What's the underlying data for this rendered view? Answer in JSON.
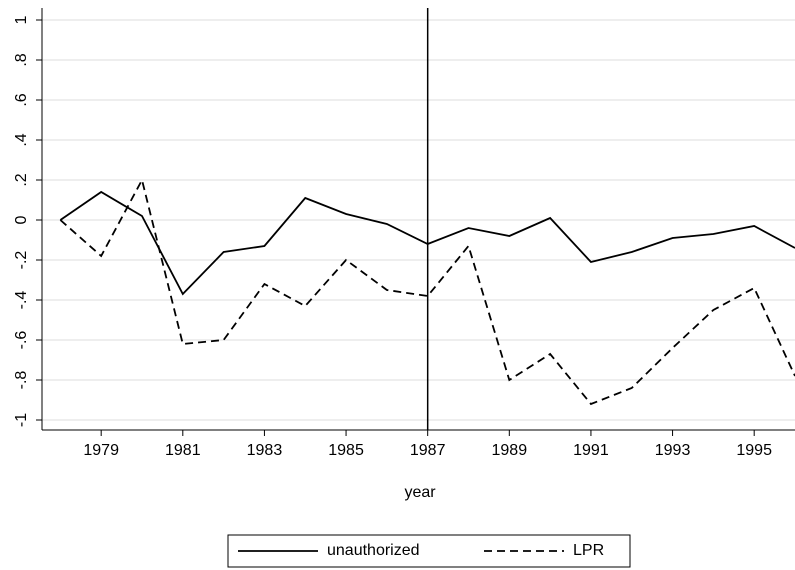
{
  "chart_data": {
    "type": "line",
    "x_label": "year",
    "x": [
      1978,
      1979,
      1980,
      1981,
      1982,
      1983,
      1984,
      1985,
      1986,
      1987,
      1988,
      1989,
      1990,
      1991,
      1992,
      1993,
      1994,
      1995,
      1996
    ],
    "series": [
      {
        "name": "unauthorized",
        "color": "#000000",
        "dash": "solid",
        "values": [
          0,
          0.14,
          0.02,
          -0.37,
          -0.16,
          -0.13,
          0.11,
          0.03,
          -0.02,
          -0.12,
          -0.04,
          -0.08,
          0.01,
          -0.21,
          -0.16,
          -0.09,
          -0.07,
          -0.03,
          -0.14
        ]
      },
      {
        "name": "LPR",
        "color": "#000000",
        "dash": "dashed",
        "values": [
          0,
          -0.18,
          0.2,
          -0.62,
          -0.6,
          -0.32,
          -0.43,
          -0.2,
          -0.35,
          -0.38,
          -0.13,
          -0.8,
          -0.67,
          -0.92,
          -0.84,
          -0.64,
          -0.45,
          -0.34,
          -0.78
        ]
      }
    ],
    "xlim": [
      1977.55,
      1996
    ],
    "xticks": [
      1979,
      1981,
      1983,
      1985,
      1987,
      1989,
      1991,
      1993,
      1995
    ],
    "ylim": [
      -1.05,
      1.06
    ],
    "yticks": [
      -1,
      {
        "value": -0.8,
        "label": "-.8"
      },
      {
        "value": -0.6,
        "label": "-.6"
      },
      {
        "value": -0.4,
        "label": "-.4"
      },
      {
        "value": -0.2,
        "label": "-.2"
      },
      0,
      {
        "value": 0.2,
        "label": ".2"
      },
      {
        "value": 0.4,
        "label": ".4"
      },
      {
        "value": 0.6,
        "label": ".6"
      },
      {
        "value": 0.8,
        "label": ".8"
      },
      1
    ],
    "vline": 1987,
    "grid": true,
    "legend": "bottom"
  }
}
